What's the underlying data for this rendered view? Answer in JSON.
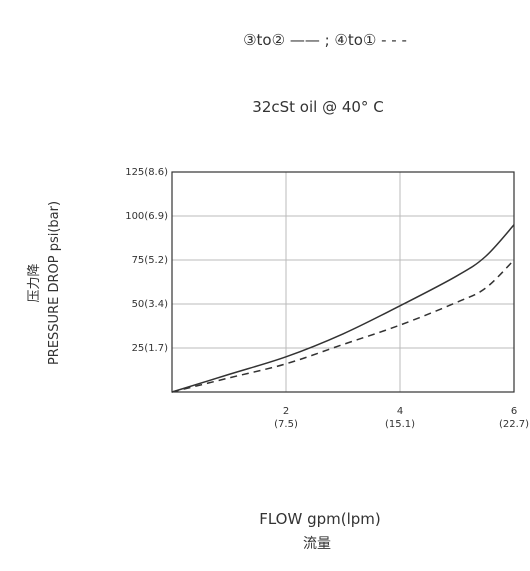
{
  "chart_data": {
    "type": "line",
    "legend": {
      "placement": "top-center",
      "text": "③to② —— ;  ④to① - - -"
    },
    "title": "32cSt oil @ 40° C",
    "xlabel": "FLOW gpm(lpm)",
    "xlabel_cn": "流量",
    "ylabel": "PRESSURE DROP psi(bar)",
    "ylabel_cn": "压力降",
    "xlim": [
      0,
      6
    ],
    "ylim": [
      0,
      125
    ],
    "grid": true,
    "x_ticks": [
      {
        "value": 2,
        "label": "2",
        "sub": "(7.5)"
      },
      {
        "value": 4,
        "label": "4",
        "sub": "(15.1)"
      },
      {
        "value": 6,
        "label": "6",
        "sub": "(22.7)"
      }
    ],
    "y_ticks": [
      {
        "value": 25,
        "label": "25(1.7)"
      },
      {
        "value": 50,
        "label": "50(3.4)"
      },
      {
        "value": 75,
        "label": "75(5.2)"
      },
      {
        "value": 100,
        "label": "100(6.9)"
      },
      {
        "value": 125,
        "label": "125(8.6)"
      }
    ],
    "series": [
      {
        "name": "③to②",
        "style": "solid",
        "x": [
          0,
          1,
          2,
          3,
          4,
          5,
          5.5,
          6
        ],
        "y": [
          0,
          10,
          20,
          33,
          49,
          66,
          77,
          95
        ]
      },
      {
        "name": "④to①",
        "style": "dashed",
        "x": [
          0,
          1,
          2,
          3,
          4,
          5,
          5.5,
          6
        ],
        "y": [
          0,
          8,
          16,
          27,
          38,
          51,
          59,
          75
        ]
      }
    ],
    "colors": {
      "line": "#333333",
      "grid": "#bbbbbb"
    }
  }
}
